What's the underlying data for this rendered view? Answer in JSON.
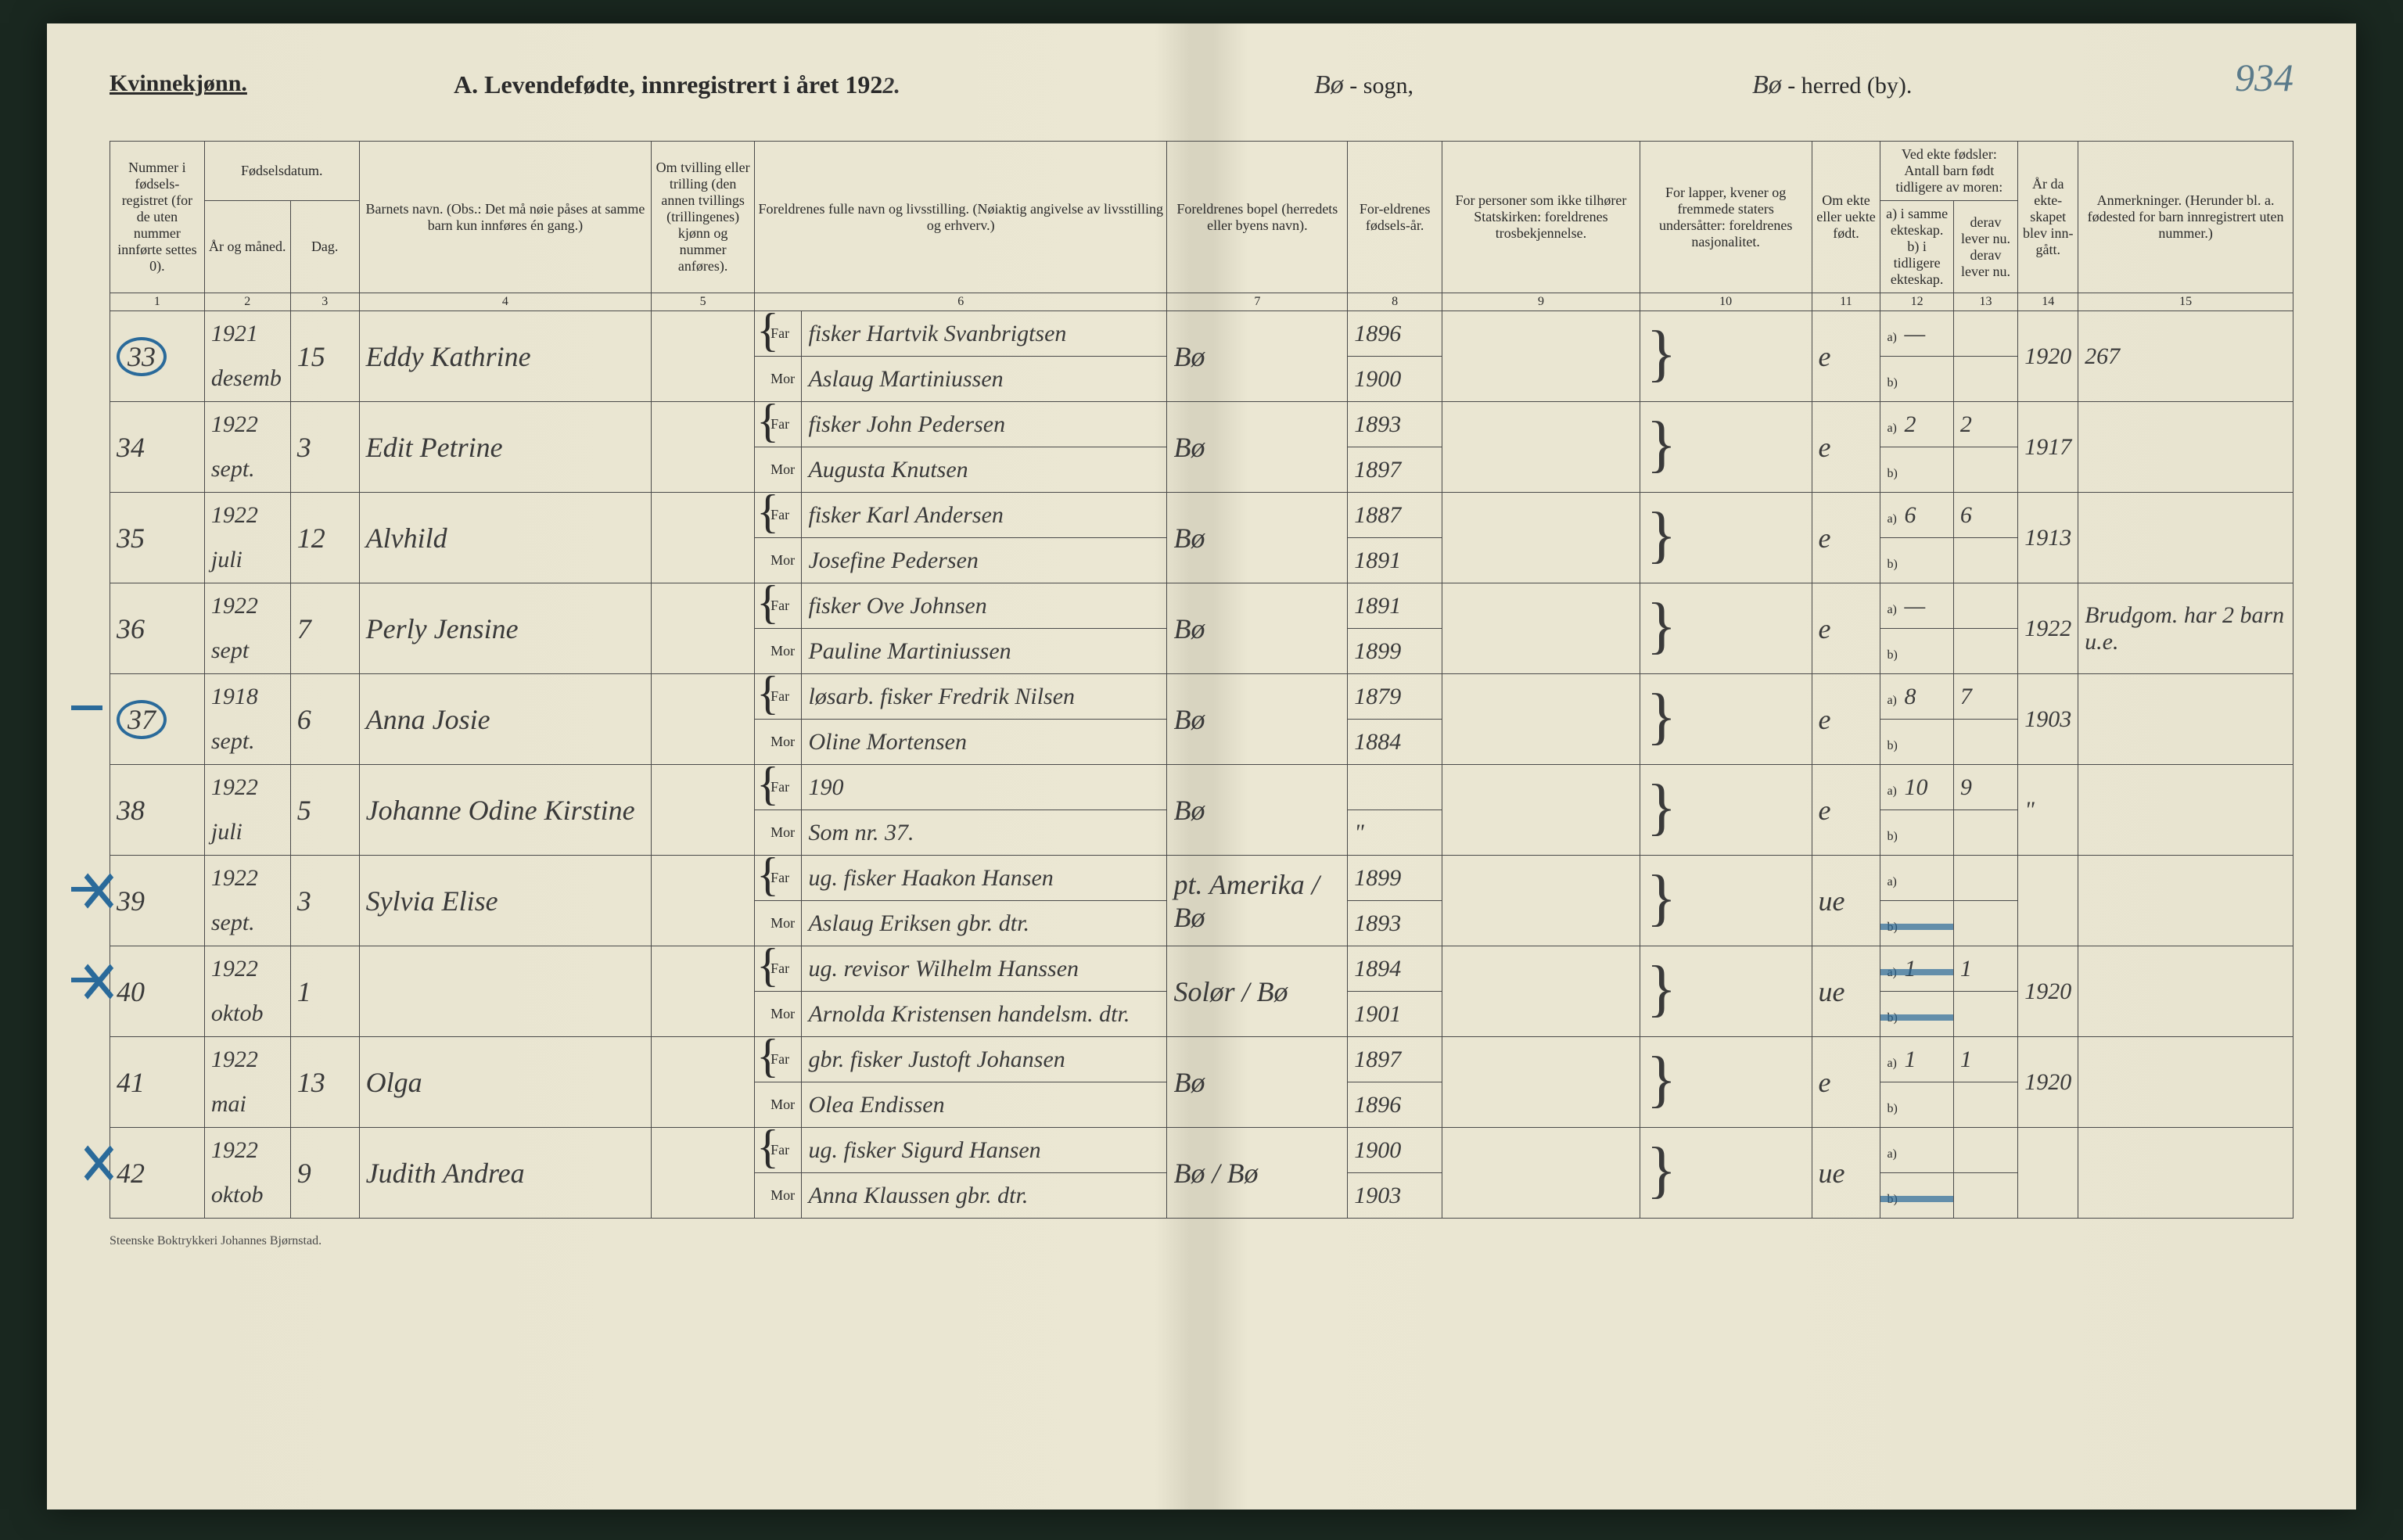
{
  "header": {
    "gender": "Kvinnekjønn.",
    "title_prefix": "A. Levendefødte, innregistrert i året 192",
    "title_year_suffix": "2.",
    "sogn_hand": "Bø",
    "sogn_label": "- sogn,",
    "herred_hand": "Bø",
    "herred_label": "- herred (by).",
    "page_number": "934"
  },
  "columns": {
    "c1": "Nummer i fødsels-registret (for de uten nummer innførte settes 0).",
    "c2a": "Fødselsdatum.",
    "c2": "År og måned.",
    "c3": "Dag.",
    "c4": "Barnets navn.\n(Obs.: Det må nøie påses at samme barn kun innføres én gang.)",
    "c5": "Om tvilling eller trilling (den annen tvillings (trillingenes) kjønn og nummer anføres).",
    "c6": "Foreldrenes fulle navn og livsstilling.\n(Nøiaktig angivelse av livsstilling og erhverv.)",
    "c7": "Foreldrenes bopel (herredets eller byens navn).",
    "c8": "For-eldrenes fødsels-år.",
    "c9": "For personer som ikke tilhører Statskirken: foreldrenes trosbekjennelse.",
    "c10": "For lapper, kvener og fremmede staters undersåtter: foreldrenes nasjonalitet.",
    "c11": "Om ekte eller uekte født.",
    "c12top": "Ved ekte fødsler: Antall barn født tidligere av moren:",
    "c12": "a) i samme ekteskap.\nb) i tidligere ekteskap.",
    "c13": "derav lever nu. derav lever nu.",
    "c14": "År da ekte-skapet blev inn-gått.",
    "c15": "Anmerkninger.\n(Herunder bl. a. fødested for barn innregistrert uten nummer.)"
  },
  "colnums": [
    "1",
    "2",
    "3",
    "4",
    "5",
    "6",
    "7",
    "8",
    "9",
    "10",
    "11",
    "12",
    "13",
    "14",
    "15"
  ],
  "far": "Far",
  "mor": "Mor",
  "a": "a)",
  "b": "b)",
  "rows": [
    {
      "num": "33",
      "circled": true,
      "dash": false,
      "x": false,
      "year": "1921",
      "month": "desemb",
      "day": "15",
      "name": "Eddy Kathrine",
      "far": "fisker Hartvik Svanbrigtsen",
      "mor": "Aslaug Martiniussen",
      "bopel": "Bø",
      "far_year": "1896",
      "mor_year": "1900",
      "ekte": "e",
      "a_val": "—",
      "b_val": "",
      "derav": "",
      "ektaar": "1920",
      "anm": "267"
    },
    {
      "num": "34",
      "circled": false,
      "dash": false,
      "x": false,
      "year": "1922",
      "month": "sept.",
      "day": "3",
      "name": "Edit Petrine",
      "far": "fisker John Pedersen",
      "mor": "Augusta Knutsen",
      "bopel": "Bø",
      "far_year": "1893",
      "mor_year": "1897",
      "ekte": "e",
      "a_val": "2",
      "b_val": "",
      "derav": "2",
      "ektaar": "1917",
      "anm": ""
    },
    {
      "num": "35",
      "circled": false,
      "dash": false,
      "x": false,
      "year": "1922",
      "month": "juli",
      "day": "12",
      "name": "Alvhild",
      "far": "fisker Karl Andersen",
      "mor": "Josefine Pedersen",
      "bopel": "Bø",
      "far_year": "1887",
      "mor_year": "1891",
      "ekte": "e",
      "a_val": "6",
      "b_val": "",
      "derav": "6",
      "ektaar": "1913",
      "anm": ""
    },
    {
      "num": "36",
      "circled": false,
      "dash": false,
      "x": false,
      "year": "1922",
      "month": "sept",
      "day": "7",
      "name": "Perly Jensine",
      "far": "fisker Ove Johnsen",
      "mor": "Pauline Martiniussen",
      "bopel": "Bø",
      "far_year": "1891",
      "mor_year": "1899",
      "ekte": "e",
      "a_val": "—",
      "b_val": "",
      "derav": "",
      "ektaar": "1922",
      "anm": "Brudgom. har 2 barn u.e."
    },
    {
      "num": "37",
      "circled": true,
      "dash": true,
      "x": false,
      "year": "1918",
      "month": "sept.",
      "day": "6",
      "name": "Anna Josie",
      "far": "løsarb. fisker Fredrik Nilsen",
      "mor": "Oline Mortensen",
      "bopel": "Bø",
      "far_year": "1879",
      "mor_year": "1884",
      "ekte": "e",
      "a_val": "8",
      "b_val": "",
      "derav": "7",
      "ektaar": "1903",
      "anm": ""
    },
    {
      "num": "38",
      "circled": false,
      "dash": false,
      "x": false,
      "year": "1922",
      "month": "juli",
      "day": "5",
      "name": "Johanne Odine Kirstine",
      "far": "190",
      "mor": "Som nr. 37.",
      "bopel": "Bø",
      "far_year": "",
      "mor_year": "\"",
      "ekte": "e",
      "a_val": "10",
      "b_val": "",
      "derav": "9",
      "ektaar": "\"",
      "anm": ""
    },
    {
      "num": "39",
      "circled": false,
      "dash": true,
      "x": true,
      "year": "1922",
      "month": "sept.",
      "day": "3",
      "name": "Sylvia Elise",
      "far": "ug. fisker Haakon Hansen",
      "mor": "Aslaug Eriksen gbr. dtr.",
      "bopel": "pt. Amerika / Bø",
      "far_year": "1899",
      "mor_year": "1893",
      "ekte": "ue",
      "a_val": "",
      "b_val": "",
      "derav": "",
      "ektaar": "",
      "anm": "",
      "strike_b": true
    },
    {
      "num": "40",
      "circled": false,
      "dash": true,
      "x": true,
      "year": "1922",
      "month": "oktob",
      "day": "1",
      "name": "",
      "far": "ug. revisor Wilhelm Hanssen",
      "mor": "Arnolda Kristensen handelsm. dtr.",
      "bopel": "Solør / Bø",
      "far_year": "1894",
      "mor_year": "1901",
      "ekte": "ue",
      "a_val": "1",
      "b_val": "",
      "derav": "1",
      "ektaar": "1920",
      "anm": "",
      "strike_a": true,
      "strike_b": true
    },
    {
      "num": "41",
      "circled": false,
      "dash": false,
      "x": false,
      "year": "1922",
      "month": "mai",
      "day": "13",
      "name": "Olga",
      "far": "gbr. fisker Justoft Johansen",
      "mor": "Olea Endissen",
      "bopel": "Bø",
      "far_year": "1897",
      "mor_year": "1896",
      "ekte": "e",
      "a_val": "1",
      "b_val": "",
      "derav": "1",
      "ektaar": "1920",
      "anm": ""
    },
    {
      "num": "42",
      "circled": false,
      "dash": false,
      "x": true,
      "year": "1922",
      "month": "oktob",
      "day": "9",
      "name": "Judith Andrea",
      "far": "ug. fisker Sigurd Hansen",
      "mor": "Anna Klaussen gbr. dtr.",
      "bopel": "Bø / Bø",
      "far_year": "1900",
      "mor_year": "1903",
      "ekte": "ue",
      "a_val": "",
      "b_val": "",
      "derav": "",
      "ektaar": "",
      "anm": "",
      "strike_b": true
    }
  ],
  "footer": "Steenske Boktrykkeri Johannes Bjørnstad.",
  "colors": {
    "paper": "#e8e4d0",
    "ink": "#2a2a2a",
    "blue_pencil": "#2a6a9a",
    "handwriting": "#3a3a3a"
  }
}
